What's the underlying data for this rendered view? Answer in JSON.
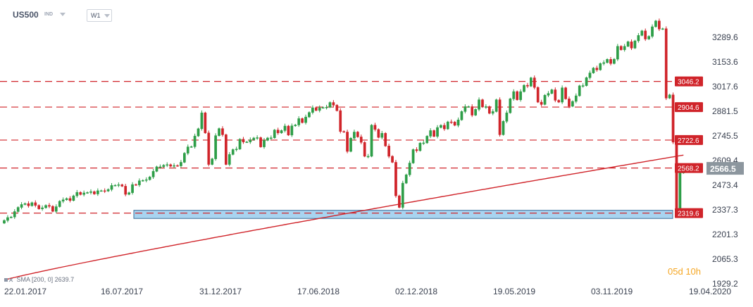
{
  "header": {
    "symbol": "US500",
    "instrument_type": "IND",
    "timeframe": "W1"
  },
  "countdown": {
    "value_days": "05",
    "unit_days": "d",
    "value_hours": "10",
    "unit_hours": "h"
  },
  "indicator": {
    "label": "SMA",
    "params": "[200,  0]",
    "value": "2639.7"
  },
  "colors": {
    "bull": "#2e9e48",
    "bear": "#d0242a",
    "sma": "#d0242a",
    "level_line": "#d0242a",
    "zone_fill": "#a8d4f0",
    "zone_border": "#3c6e9a",
    "current_price_bg": "#8c969e"
  },
  "chart_data": {
    "type": "candlestick",
    "title": "",
    "xlabel": "",
    "ylabel": "",
    "ylim": [
      1929.2,
      3425
    ],
    "grid": false,
    "y_ticks": [
      "3289.6",
      "3153.6",
      "3017.6",
      "2881.5",
      "2745.5",
      "2609.4",
      "2473.4",
      "2337.3",
      "2201.3",
      "2065.3",
      "1929.2"
    ],
    "x_ticks": [
      "22.01.2017",
      "16.07.2017",
      "31.12.2017",
      "17.06.2018",
      "02.12.2018",
      "19.05.2019",
      "03.11.2019",
      "19.04.2020"
    ],
    "horizontal_levels": [
      {
        "value": 3046.2,
        "label": "3046.2"
      },
      {
        "value": 2904.6,
        "label": "2904.6"
      },
      {
        "value": 2722.6,
        "label": "2722.6"
      },
      {
        "value": 2568.2,
        "label": "2568.2"
      },
      {
        "value": 2319.6,
        "label": "2319.6"
      }
    ],
    "support_zone": {
      "low": 2290,
      "high": 2335
    },
    "current_price": {
      "value": 2566.5,
      "label": "2566.5"
    },
    "sma": {
      "name": "SMA [200, 0]",
      "period": 200,
      "last_value": 2639.7
    },
    "candle_closes": [
      2279,
      2295,
      2298,
      2328,
      2351,
      2367,
      2372,
      2360,
      2377,
      2362,
      2343,
      2349,
      2362,
      2357,
      2329,
      2355,
      2385,
      2393,
      2400,
      2389,
      2415,
      2434,
      2422,
      2431,
      2433,
      2438,
      2425,
      2443,
      2443,
      2441,
      2450,
      2472,
      2473,
      2476,
      2468,
      2423,
      2432,
      2477,
      2475,
      2498,
      2500,
      2504,
      2519,
      2550,
      2575,
      2575,
      2584,
      2587,
      2578,
      2582,
      2580,
      2600,
      2650,
      2685,
      2686,
      2745,
      2785,
      2873,
      2762,
      2588,
      2619,
      2747,
      2786,
      2752,
      2588,
      2643,
      2670,
      2673,
      2727,
      2712,
      2712,
      2724,
      2734,
      2736,
      2685,
      2721,
      2734,
      2735,
      2778,
      2762,
      2775,
      2800,
      2750,
      2801,
      2806,
      2841,
      2819,
      2850,
      2875,
      2901,
      2886,
      2901,
      2902,
      2904,
      2930,
      2915,
      2885,
      2770,
      2767,
      2660,
      2733,
      2767,
      2740,
      2710,
      2633,
      2633,
      2805,
      2781,
      2737,
      2760,
      2690,
      2633,
      2600,
      2415,
      2351,
      2485,
      2531,
      2596,
      2670,
      2664,
      2706,
      2707,
      2744,
      2775,
      2743,
      2792,
      2804,
      2784,
      2823,
      2822,
      2804,
      2834,
      2880,
      2907,
      2907,
      2860,
      2892,
      2945,
      2905,
      2907,
      2870,
      2880,
      2945,
      2752,
      2826,
      2873,
      2950,
      2990,
      2945,
      2990,
      3025,
      3020,
      3066,
      3013,
      2932,
      2919,
      2970,
      2980,
      3000,
      2942,
      2932,
      3011,
      2950,
      2909,
      2936,
      2967,
      3022,
      3023,
      3067,
      3093,
      3120,
      3110,
      3145,
      3150,
      3168,
      3145,
      3169,
      3240,
      3221,
      3240,
      3265,
      3230,
      3270,
      3300,
      3325,
      3280,
      3295,
      3348,
      3380,
      3335,
      3337,
      2954,
      2972,
      2711,
      2305,
      2541,
      2570
    ]
  }
}
